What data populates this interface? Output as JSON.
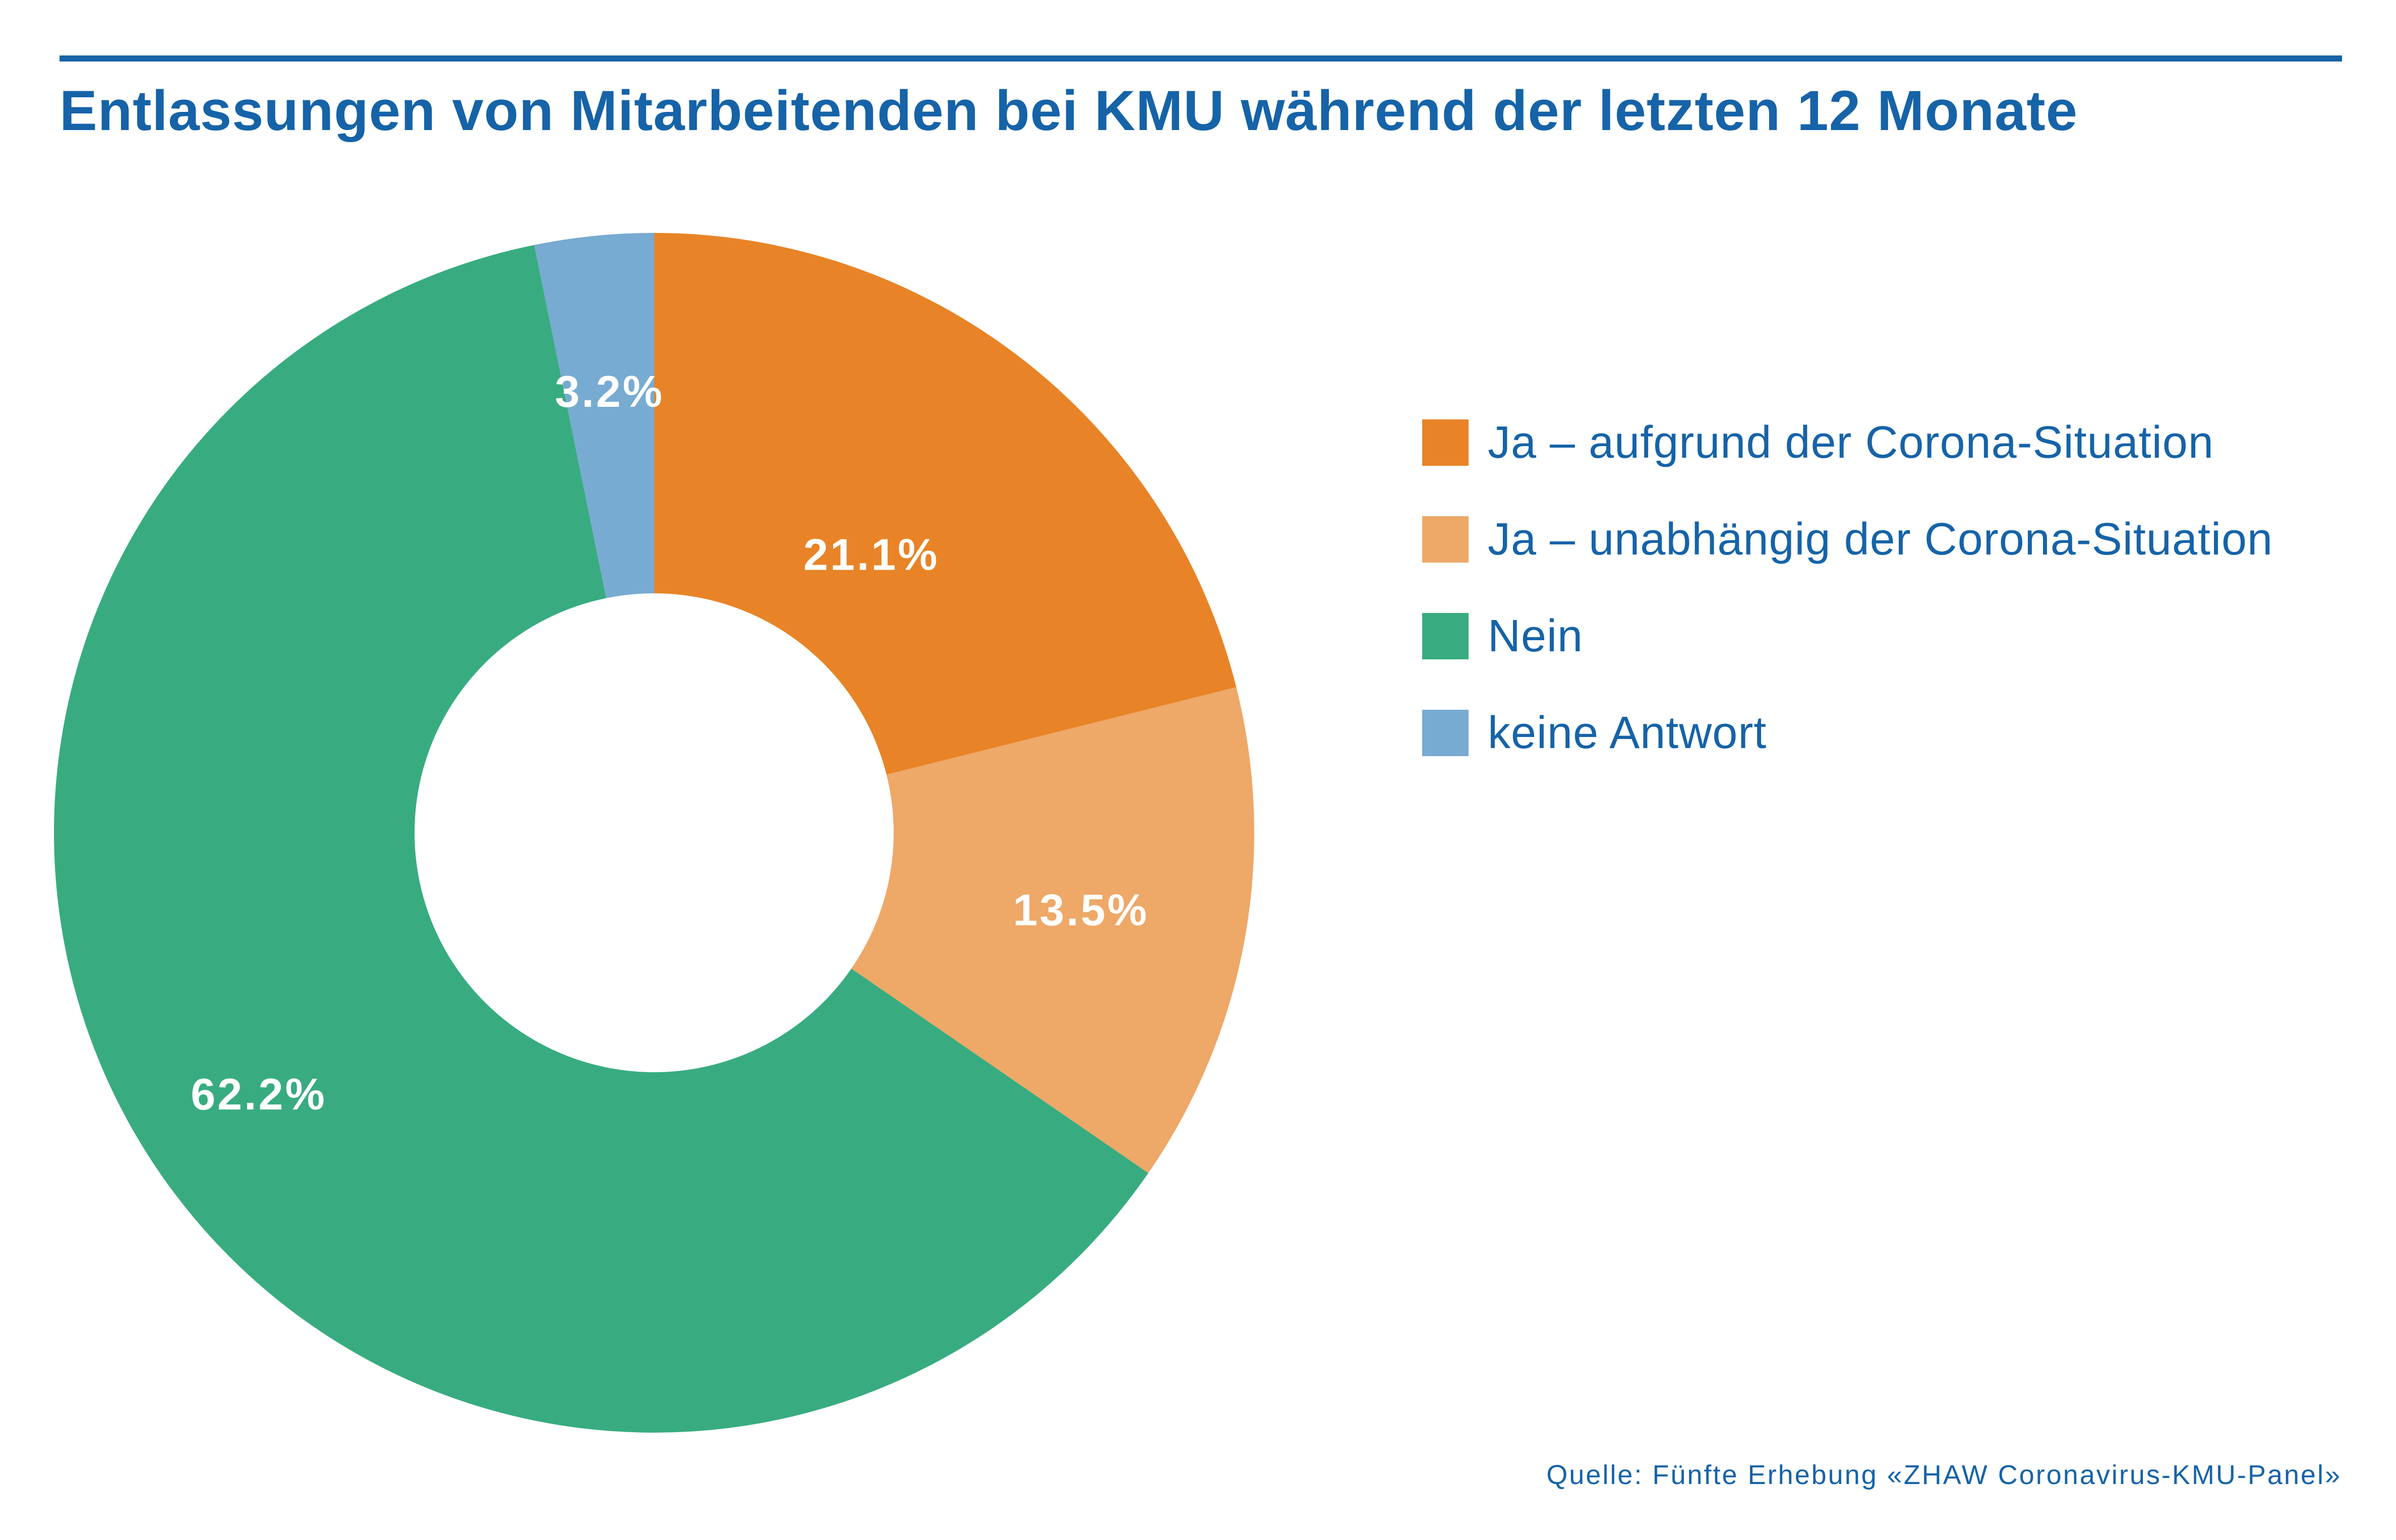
{
  "chart_data": {
    "type": "pie",
    "variant": "donut",
    "title": "Entlassungen von Mitarbeitenden bei KMU während der letzten 12 Monate",
    "categories": [
      "Ja – aufgrund der Corona-Situation",
      "Ja – unabhängig der Corona-Situation",
      "Nein",
      "keine Antwort"
    ],
    "values": [
      21.1,
      13.5,
      62.2,
      3.2
    ],
    "value_labels": [
      "21.1%",
      "13.5%",
      "62.2%",
      "3.2%"
    ],
    "colors": [
      "#e88427",
      "#eea868",
      "#38ac80",
      "#78abd1"
    ],
    "start_angle": "12 o'clock",
    "direction": "clockwise",
    "legend": {
      "position": "right",
      "items": [
        {
          "label": "Ja – aufgrund der Corona-Situation",
          "color": "#e88427"
        },
        {
          "label": "Ja – unabhängig der Corona-Situation",
          "color": "#eea868"
        },
        {
          "label": "Nein",
          "color": "#38ac80"
        },
        {
          "label": "keine Antwort",
          "color": "#78abd1"
        }
      ]
    },
    "source": "Quelle: Fünfte Erhebung «ZHAW Coronavirus-KMU-Panel»"
  },
  "theme": {
    "accent": "#1663a8",
    "slice_text": "#ffffff"
  }
}
